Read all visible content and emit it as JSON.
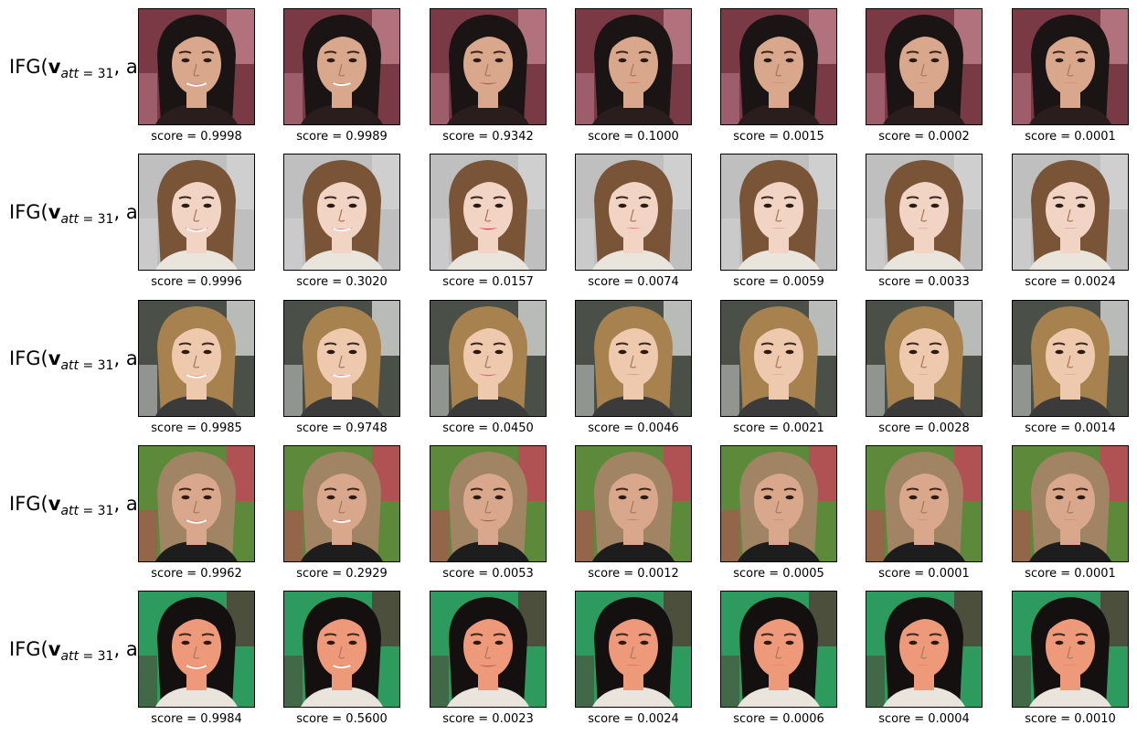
{
  "row_label": {
    "prefix": "IFG(",
    "v": "v",
    "sub_text": "att",
    "sub_eq": " = 31",
    "suffix": ", al)"
  },
  "score_prefix": "score = ",
  "rows": [
    {
      "subject": "young woman with long black hair, pink background",
      "colors": {
        "bg": "#7a3a45",
        "bg2": "#c98a96",
        "hair": "#1b1414",
        "skin": "#d9a88c",
        "lip": "#d04a60",
        "cloth": "#2a1d1d"
      },
      "scores": [
        "0.9998",
        "0.9989",
        "0.9342",
        "0.1000",
        "0.0015",
        "0.0002",
        "0.0001"
      ]
    },
    {
      "subject": "young woman with long brown hair, grey background",
      "colors": {
        "bg": "#bfbfbf",
        "bg2": "#d6d6d6",
        "hair": "#7a5436",
        "skin": "#f2d4c4",
        "lip": "#d83a55",
        "cloth": "#e9e4dc"
      },
      "scores": [
        "0.9996",
        "0.3020",
        "0.0157",
        "0.0074",
        "0.0059",
        "0.0033",
        "0.0024"
      ]
    },
    {
      "subject": "young woman with blonde hair, outdoor background",
      "colors": {
        "bg": "#4a5048",
        "bg2": "#e8e8e8",
        "hair": "#a7824f",
        "skin": "#efc9ae",
        "lip": "#c9707a",
        "cloth": "#3b3b3b"
      },
      "scores": [
        "0.9985",
        "0.9748",
        "0.0450",
        "0.0046",
        "0.0021",
        "0.0028",
        "0.0014"
      ]
    },
    {
      "subject": "older woman with short light-brown hair, flowers behind",
      "colors": {
        "bg": "#5d8a3a",
        "bg2": "#d43a5e",
        "hair": "#a08463",
        "skin": "#d9a88c",
        "lip": "#b05a5a",
        "cloth": "#1d1d1d"
      },
      "scores": [
        "0.9962",
        "0.2929",
        "0.0053",
        "0.0012",
        "0.0005",
        "0.0001",
        "0.0001"
      ]
    },
    {
      "subject": "young man with black hair, green background",
      "colors": {
        "bg": "#2d9a5e",
        "bg2": "#5b2f2f",
        "hair": "#141010",
        "skin": "#ee9a7a",
        "lip": "#c55a52",
        "cloth": "#e9e4dc"
      },
      "scores": [
        "0.9984",
        "0.5600",
        "0.0023",
        "0.0024",
        "0.0006",
        "0.0004",
        "0.0010"
      ]
    }
  ]
}
